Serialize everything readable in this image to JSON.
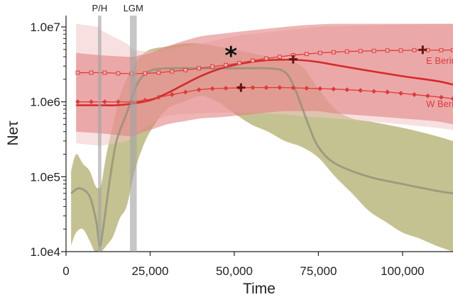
{
  "chart_data": {
    "type": "line",
    "xlabel": "Time",
    "ylabel": "Neτ",
    "xlim": [
      0,
      115000
    ],
    "ylim": [
      10000,
      12000000
    ],
    "yscale": "log",
    "x_ticks": [
      0,
      25000,
      50000,
      75000,
      100000
    ],
    "x_tick_labels": [
      "0",
      "25,000",
      "50,000",
      "75,000",
      "100,000"
    ],
    "y_ticks": [
      10000,
      100000,
      1000000,
      10000000
    ],
    "y_tick_labels": [
      "1.0e4",
      "1.0e5",
      "1.0e6",
      "1.0e7"
    ],
    "grid": false,
    "legend": "none",
    "vertical_bands": [
      {
        "label": "P/H",
        "x_start": 9500,
        "x_end": 10500,
        "color": "#a3a3a3"
      },
      {
        "label": "LGM",
        "x_start": 19000,
        "x_end": 21000,
        "color": "#a3a3a3"
      }
    ],
    "series": [
      {
        "style": "olive-band",
        "color": "#b8b47a",
        "x": [
          1500,
          3000,
          5000,
          7000,
          8500,
          9500,
          10500,
          12000,
          14000,
          16000,
          18000,
          20000,
          22000,
          25000,
          30000,
          35000,
          40000,
          45000,
          50000,
          55000,
          60000,
          65000,
          70000,
          75000,
          80000,
          85000,
          90000,
          95000,
          100000,
          105000,
          110000,
          115000
        ],
        "lower": [
          12000,
          18000,
          20000,
          14000,
          10000,
          10000,
          10000,
          12000,
          16000,
          28000,
          40000,
          100000,
          200000,
          400000,
          800000,
          1000000,
          1200000,
          1000000,
          700000,
          500000,
          400000,
          300000,
          250000,
          180000,
          100000,
          60000,
          35000,
          25000,
          18000,
          15000,
          12000,
          10000
        ],
        "upper": [
          120000,
          200000,
          150000,
          120000,
          80000,
          70000,
          80000,
          200000,
          500000,
          1200000,
          2000000,
          3000000,
          4000000,
          5000000,
          5500000,
          6000000,
          6000000,
          5500000,
          5000000,
          4500000,
          4000000,
          3500000,
          3000000,
          1500000,
          800000,
          600000,
          550000,
          500000,
          450000,
          400000,
          350000,
          300000
        ]
      },
      {
        "style": "olive-median",
        "color": "#8f8f78",
        "x": [
          1500,
          4000,
          7000,
          9000,
          10000,
          11000,
          13000,
          15000,
          18000,
          20000,
          22000,
          25000,
          30000,
          40000,
          50000,
          60000,
          65000,
          68000,
          72000,
          75000,
          80000,
          90000,
          100000,
          110000,
          115000
        ],
        "y": [
          60000,
          70000,
          55000,
          25000,
          12000,
          20000,
          90000,
          300000,
          700000,
          1300000,
          2000000,
          2600000,
          2800000,
          2800000,
          2800000,
          2800000,
          2500000,
          1500000,
          500000,
          250000,
          150000,
          100000,
          80000,
          65000,
          60000
        ]
      },
      {
        "style": "pink-band",
        "color": "#f2c7c7",
        "x": [
          3000,
          9500,
          10500,
          18000,
          20000,
          22000,
          25000,
          30000,
          40000,
          50000,
          60000,
          65000,
          70000,
          75000,
          80000,
          90000,
          100000,
          110000,
          115000
        ],
        "lower": [
          280000,
          260000,
          260000,
          300000,
          350000,
          420000,
          500000,
          650000,
          700000,
          720000,
          700000,
          680000,
          650000,
          620000,
          600000,
          550000,
          500000,
          450000,
          420000
        ],
        "upper": [
          11000000,
          10000000,
          9000000,
          6000000,
          5000000,
          4800000,
          4700000,
          5000000,
          6000000,
          7500000,
          8500000,
          9000000,
          9500000,
          10000000,
          10200000,
          10500000,
          10800000,
          11000000,
          11000000
        ]
      },
      {
        "style": "red-band",
        "color": "#e27f7f",
        "x": [
          3000,
          10000,
          18000,
          20000,
          22000,
          25000,
          30000,
          35000,
          40000,
          45000,
          50000,
          55000,
          60000,
          65000,
          70000,
          75000,
          80000,
          90000,
          100000,
          110000,
          115000
        ],
        "lower": [
          400000,
          380000,
          350000,
          350000,
          380000,
          420000,
          500000,
          550000,
          600000,
          620000,
          650000,
          680000,
          720000,
          750000,
          750000,
          750000,
          700000,
          650000,
          600000,
          550000,
          500000
        ],
        "upper": [
          4500000,
          4200000,
          4000000,
          4000000,
          4200000,
          4500000,
          5500000,
          6500000,
          7500000,
          8000000,
          8500000,
          9000000,
          9500000,
          10000000,
          10500000,
          10800000,
          11000000,
          11000000,
          11000000,
          11000000,
          11000000
        ]
      },
      {
        "style": "red-median",
        "color": "#d42a2a",
        "x": [
          3000,
          10000,
          15000,
          20000,
          25000,
          30000,
          35000,
          40000,
          45000,
          50000,
          55000,
          60000,
          65000,
          70000,
          75000,
          80000,
          90000,
          100000,
          110000,
          115000
        ],
        "y": [
          900000,
          900000,
          900000,
          950000,
          1050000,
          1300000,
          1700000,
          2200000,
          2700000,
          3100000,
          3400000,
          3600000,
          3650000,
          3600000,
          3400000,
          3100000,
          2600000,
          2200000,
          1900000,
          1700000
        ]
      },
      {
        "name": "E Beringia",
        "style": "square-markers",
        "color": "#e03a3a",
        "x": [
          3500,
          7500,
          11500,
          15500,
          19500,
          23500,
          27500,
          31500,
          35500,
          39500,
          43500,
          47500,
          51500,
          55500,
          59500,
          63500,
          67500,
          71500,
          75500,
          79500,
          83500,
          87500,
          91500,
          95500,
          99500,
          103500,
          107500,
          111500,
          115000
        ],
        "y": [
          2450000,
          2450000,
          2450000,
          2400000,
          2380000,
          2400000,
          2450000,
          2550000,
          2650000,
          2800000,
          2950000,
          3100000,
          3300000,
          3550000,
          3800000,
          4000000,
          4200000,
          4350000,
          4500000,
          4600000,
          4700000,
          4750000,
          4800000,
          4850000,
          4850000,
          4900000,
          4900000,
          4900000,
          4900000
        ]
      },
      {
        "name": "W Beringia",
        "style": "diamond-markers",
        "color": "#e03a3a",
        "x": [
          3500,
          7500,
          11500,
          15500,
          19500,
          23500,
          27500,
          31500,
          35500,
          39500,
          43500,
          47500,
          51500,
          55500,
          59500,
          63500,
          67500,
          71500,
          75500,
          79500,
          83500,
          87500,
          91500,
          95500,
          99500,
          103500,
          107500,
          111500,
          115000
        ],
        "y": [
          1000000,
          1000000,
          1000000,
          1000000,
          1000000,
          1050000,
          1150000,
          1250000,
          1350000,
          1450000,
          1500000,
          1520000,
          1540000,
          1550000,
          1550000,
          1550000,
          1540000,
          1520000,
          1500000,
          1480000,
          1450000,
          1420000,
          1380000,
          1350000,
          1300000,
          1250000,
          1200000,
          1150000,
          1100000
        ]
      }
    ],
    "cross_markers": [
      {
        "x": 52000,
        "y": 1550000
      },
      {
        "x": 67500,
        "y": 3700000
      },
      {
        "x": 106000,
        "y": 4950000
      }
    ],
    "annotations": [
      {
        "text": "*",
        "x": 49000,
        "y": 4200000
      },
      {
        "text": "E Beringia",
        "x": 107000,
        "y": 3600000
      },
      {
        "text": "W Beringia",
        "x": 107000,
        "y": 950000
      }
    ]
  },
  "colors": {
    "axis": "#222222",
    "cross": "#6b1414"
  }
}
